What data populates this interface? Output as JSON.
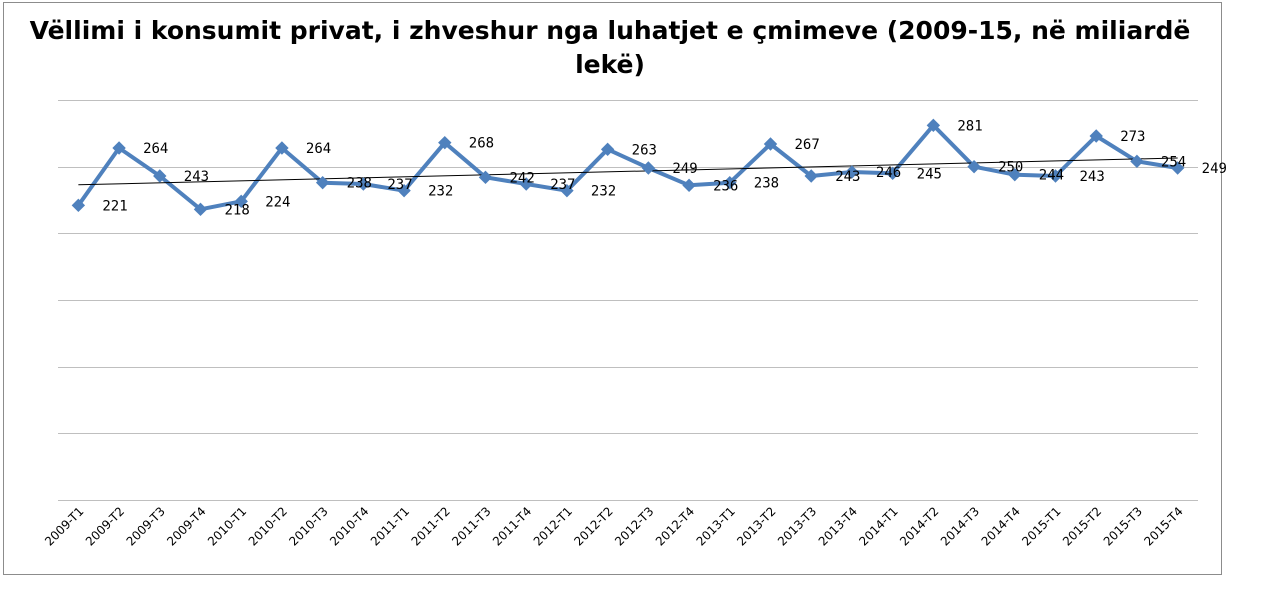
{
  "chart_data": {
    "type": "line",
    "title": "Vëllimi i konsumit privat, i zhveshur nga luhatjet e çmimeve (2009-15, në miliardë lekë)",
    "categories": [
      "2009-T1",
      "2009-T2",
      "2009-T3",
      "2009-T4",
      "2010-T1",
      "2010-T2",
      "2010-T3",
      "2010-T4",
      "2011-T1",
      "2011-T2",
      "2011-T3",
      "2011-T4",
      "2012-T1",
      "2012-T2",
      "2012-T3",
      "2012-T4",
      "2013-T1",
      "2013-T2",
      "2013-T3",
      "2013-T4",
      "2014-T1",
      "2014-T2",
      "2014-T3",
      "2014-T4",
      "2015-T1",
      "2015-T2",
      "2015-T3",
      "2015-T4"
    ],
    "series": [
      {
        "values": [
          221,
          264,
          243,
          218,
          224,
          264,
          238,
          237,
          232,
          268,
          242,
          237,
          232,
          263,
          249,
          236,
          238,
          267,
          243,
          246,
          245,
          281,
          250,
          244,
          243,
          273,
          254,
          249
        ],
        "color": "#4f81bd",
        "marker": "diamond",
        "data_labels": true
      }
    ],
    "trendline": {
      "type": "linear",
      "color": "#000000"
    },
    "ylim": [
      0,
      300
    ],
    "y_tick_labels_visible": false,
    "grid": true,
    "legend": "none",
    "xlabel": "",
    "ylabel": ""
  }
}
